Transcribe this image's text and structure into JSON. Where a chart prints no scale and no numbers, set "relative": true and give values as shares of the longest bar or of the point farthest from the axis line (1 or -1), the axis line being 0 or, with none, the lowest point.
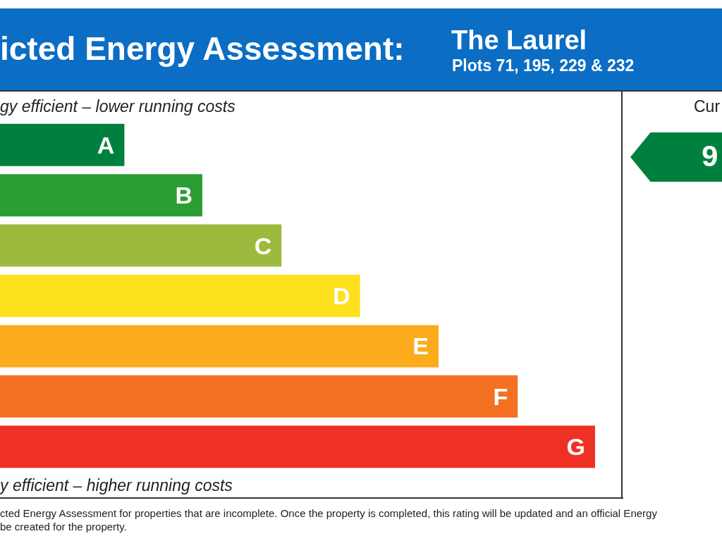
{
  "chart_data": {
    "type": "bar",
    "orientation": "horizontal",
    "relative": true,
    "title": "icted Energy Assessment:",
    "subtitle": "The Laurel",
    "categories": [
      "A",
      "B",
      "C",
      "D",
      "E",
      "F",
      "G"
    ],
    "values": [
      0.209,
      0.34,
      0.473,
      0.605,
      0.737,
      0.87,
      1
    ],
    "colors": [
      "#00803f",
      "#2a9d33",
      "#9cbb3c",
      "#fde11c",
      "#fbab1b",
      "#f47123",
      "#ee3124"
    ],
    "data_labels": false,
    "annotations": [
      "Plots 71, 195, 229 & 232",
      "gy efficient – lower running costs",
      "y efficient – higher running costs",
      "Cur",
      "9",
      "cted Energy Assessment for properties that are incomplete. Once the property is completed, this rating will be updated and an official Energy",
      "be created for the property."
    ]
  }
}
